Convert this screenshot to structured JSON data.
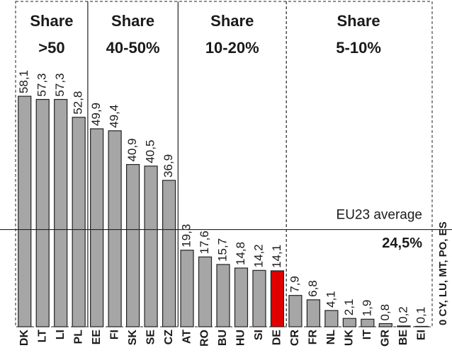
{
  "chart_data": {
    "type": "bar",
    "groups": [
      [
        "Share",
        ">50"
      ],
      [
        "Share",
        "40-50%"
      ],
      [
        "Share",
        "10-20%"
      ],
      [
        "Share",
        "5-10%"
      ]
    ],
    "categories": [
      "DK",
      "LT",
      "LI",
      "PL",
      "EE",
      "FI",
      "SK",
      "SE",
      "CZ",
      "AT",
      "RO",
      "BU",
      "HU",
      "SI",
      "DE",
      "CR",
      "FR",
      "NL",
      "UK",
      "IT",
      "GR",
      "BE",
      "EI"
    ],
    "values": [
      58.1,
      57.3,
      57.3,
      52.8,
      49.9,
      49.4,
      40.9,
      40.5,
      36.9,
      19.3,
      17.6,
      15.7,
      14.8,
      14.2,
      14.1,
      7.9,
      6.8,
      4.1,
      2.1,
      1.9,
      0.8,
      0.2,
      0.1
    ],
    "value_labels": [
      "58,1",
      "57,3",
      "57,3",
      "52,8",
      "49,9",
      "49,4",
      "40,9",
      "40,5",
      "36,9",
      "19,3",
      "17,6",
      "15,7",
      "14,8",
      "14,2",
      "14,1",
      "7,9",
      "6,8",
      "4,1",
      "2,1",
      "1,9",
      "0,8",
      "0,2",
      "0,1"
    ],
    "colors": [
      "#a6a6a6",
      "#a6a6a6",
      "#a6a6a6",
      "#a6a6a6",
      "#a6a6a6",
      "#a6a6a6",
      "#a6a6a6",
      "#a6a6a6",
      "#a6a6a6",
      "#a6a6a6",
      "#a6a6a6",
      "#a6a6a6",
      "#a6a6a6",
      "#a6a6a6",
      "#e00000",
      "#a6a6a6",
      "#a6a6a6",
      "#a6a6a6",
      "#a6a6a6",
      "#a6a6a6",
      "#a6a6a6",
      "#a6a6a6",
      "#a6a6a6"
    ],
    "ylim": [
      0,
      82
    ],
    "average": {
      "label": "EU23 average",
      "value": 24.5,
      "value_label": "24,5%"
    },
    "note": "0 CY, LU, MT, PO, ES"
  }
}
